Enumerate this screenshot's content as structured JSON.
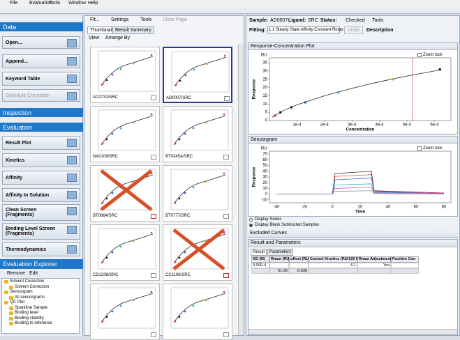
{
  "menu": [
    "File",
    "Evaluation",
    "Tools",
    "Window",
    "Help"
  ],
  "left": {
    "data_header": "Data",
    "data_buttons": [
      "Open...",
      "Append...",
      "Keyword Table",
      "Schedule Correction"
    ],
    "inspection": "Inspection",
    "evaluation": "Evaluation",
    "eval_buttons": [
      "Result Plot",
      "Kinetics",
      "Affinity",
      "Affinity In Solution",
      "Clean Screen (Fragments)",
      "Binding Level Screen (Fragments)",
      "Thermodynamics"
    ],
    "explorer": "Evaluation Explorer",
    "explorer_tools": [
      "Remove",
      "Edit"
    ],
    "tree": [
      "Solvent Correction",
      "Solvent Correction",
      "Sensorgram",
      "All sensorgrams",
      "QC Plot",
      "Sparkline Sample",
      "Binding level",
      "Binding stability",
      "Binding to reference"
    ]
  },
  "middle": {
    "toolbar": [
      "Fit...",
      "Settings",
      "Tools",
      "Clear Page"
    ],
    "tabs": [
      "Thumbnails",
      "Result Summary"
    ],
    "view": [
      "View",
      "Arrange By"
    ],
    "thumbnails": [
      {
        "label": "AC0731/SRC",
        "excluded": false
      },
      {
        "label": "AD0007/SRC",
        "excluded": false,
        "selected": true
      },
      {
        "label": "NA0109/SRC",
        "excluded": false
      },
      {
        "label": "BT0345A/SRC",
        "excluded": false
      },
      {
        "label": "BT0864/SRC",
        "excluded": true
      },
      {
        "label": "BT0777/SRC",
        "excluded": false
      },
      {
        "label": "CD1208/SRC",
        "excluded": false
      },
      {
        "label": "CC1108/SRC",
        "excluded": true
      },
      {
        "excluded": false
      },
      {
        "excluded": false
      }
    ]
  },
  "right": {
    "sample_label": "Sample:",
    "sample": "AD0007",
    "ligand_label": "Ligand:",
    "ligand": "SRC",
    "status_label": "Status:",
    "status": "Checked",
    "tools": "Tools",
    "fitting_label": "Fitting:",
    "fitting": "1:1 Steady State Affinity Constant Rmax",
    "undo": "Undo",
    "description": "Description",
    "response_plot": {
      "title": "Response-Concentration Plot",
      "zoom": "Zoom lock",
      "unit": "RU",
      "ylabel": "Response",
      "xlabel": "Concentration",
      "ylim": [
        0,
        38
      ],
      "yticks": [
        0,
        5,
        10,
        15,
        20,
        25,
        30,
        35
      ],
      "xlim": [
        0,
        0.00066
      ],
      "xticks": [
        {
          "value": 0.0001,
          "label": "1e-4"
        },
        {
          "value": 0.0002,
          "label": "2e-4"
        },
        {
          "value": 0.0003,
          "label": "3e-4"
        },
        {
          "value": 0.0004,
          "label": "4e-4"
        },
        {
          "value": 0.0005,
          "label": "5e-4"
        },
        {
          "value": 0.0006,
          "label": "6e-4"
        }
      ],
      "x": [
        2e-05,
        4e-05,
        8e-05,
        0.00013,
        0.00025,
        0.00045,
        0.00062
      ],
      "values": [
        3,
        5,
        8,
        11,
        17,
        25,
        31
      ],
      "colors": [
        "#e0303a",
        "#222",
        "#333",
        "#2a5fd0",
        "#20b0c0",
        "#c0a030",
        "#222"
      ],
      "fit_x": [
        1e-05,
        5e-05,
        0.0001,
        0.0002,
        0.0003,
        0.0004,
        0.0005,
        0.0006,
        0.00062
      ],
      "fit_values": [
        2,
        6,
        9.5,
        15,
        19.5,
        23.5,
        27,
        30,
        30.6
      ],
      "marker_x": 0.00052
    },
    "sensorgram": {
      "title": "Sensorgram",
      "zoom": "Zoom lock",
      "unit": "RU",
      "ylabel": "Response",
      "xlabel": "Time",
      "ylim": [
        -15,
        75
      ],
      "yticks": [
        -10,
        0,
        10,
        20,
        30,
        40,
        50,
        60,
        70
      ],
      "xlim": [
        -45,
        85
      ],
      "xticks": [
        -40,
        -20,
        0,
        20,
        40,
        60,
        80
      ],
      "series": [
        {
          "color": "#222",
          "x": [
            -40,
            0,
            2,
            28,
            30,
            80
          ],
          "values": [
            0,
            0,
            36,
            40,
            6,
            2
          ]
        },
        {
          "color": "#e0303a",
          "x": [
            -40,
            0,
            2,
            28,
            30,
            80
          ],
          "values": [
            0,
            0,
            31,
            34,
            5,
            2
          ]
        },
        {
          "color": "#2a5fd0",
          "x": [
            -40,
            0,
            2,
            28,
            30,
            80
          ],
          "values": [
            0,
            0,
            25,
            28,
            4,
            1
          ]
        },
        {
          "color": "#20b0c0",
          "x": [
            -40,
            0,
            2,
            28,
            30,
            80
          ],
          "values": [
            0,
            0,
            16,
            18,
            3,
            1
          ]
        },
        {
          "color": "#c040c0",
          "x": [
            -40,
            0,
            2,
            28,
            30,
            80
          ],
          "values": [
            0,
            0,
            10,
            12,
            2,
            1
          ]
        },
        {
          "color": "#888",
          "x": [
            -40,
            0,
            2,
            28,
            30,
            80
          ],
          "values": [
            0,
            0,
            5,
            6,
            1,
            0
          ]
        }
      ]
    },
    "display_options": [
      "Display Series",
      "Display Blank Subtracted Samples"
    ],
    "excluded": "Excluded Curves",
    "results": "Result and Parameters",
    "result_tabs": [
      "Result",
      "Parameters"
    ],
    "table": {
      "headers": [
        "KD (M)",
        "Rmax (RU)",
        "offset (RU)",
        "Control Kinetics (RU/100 Ru)",
        "Rmax Adjustment",
        "Positive Con"
      ],
      "rows": [
        [
          {
            "col": 0,
            "text": "3.00E-4"
          },
          {
            "col": 3,
            "text": "6.1"
          },
          {
            "col": 4,
            "text": "Yes"
          }
        ],
        [
          {
            "col": 1,
            "text": "51.95"
          },
          {
            "col": 2,
            "text": "-0.838"
          }
        ]
      ]
    }
  }
}
